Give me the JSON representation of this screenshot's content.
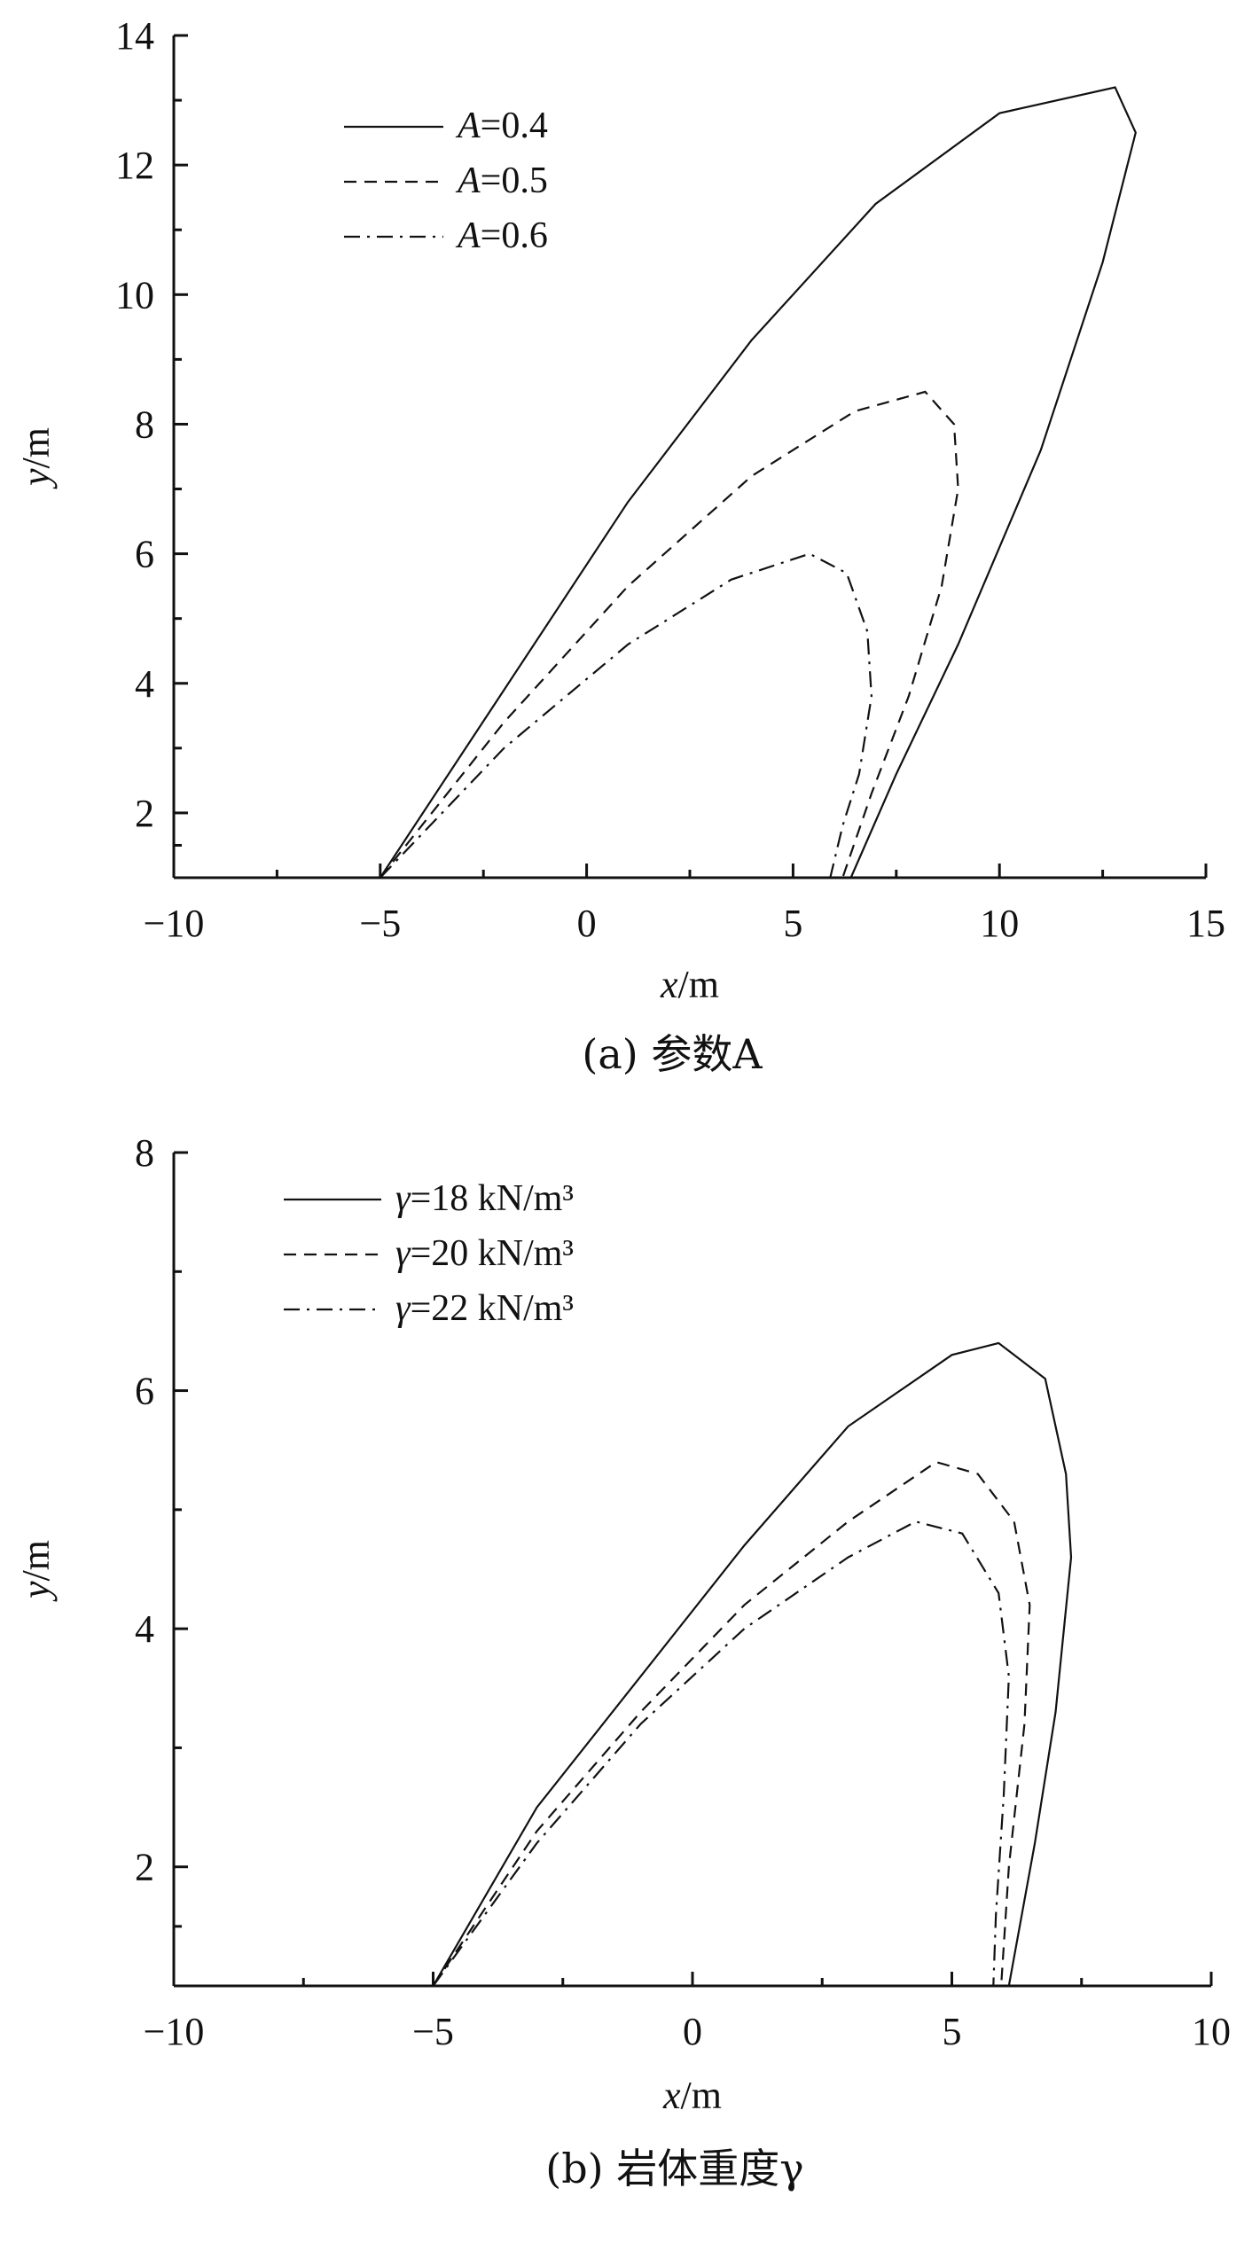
{
  "chart_data": [
    {
      "type": "line",
      "panel": "a",
      "caption": "(a) 参数A",
      "xlabel": "x/m",
      "ylabel": "y/m",
      "xlim": [
        -10,
        15
      ],
      "ylim": [
        1,
        14
      ],
      "xticks": [
        -10,
        -5,
        0,
        5,
        10,
        15
      ],
      "xtick_labels": [
        "−10",
        "−5",
        "0",
        "5",
        "10",
        "15"
      ],
      "yticks": [
        2,
        4,
        6,
        8,
        10,
        12,
        14
      ],
      "ytick_labels": [
        "2",
        "4",
        "6",
        "8",
        "10",
        "12",
        "14"
      ],
      "legend_position": "top-left",
      "series": [
        {
          "name": "A=0.4",
          "style": "solid",
          "points": [
            [
              -5,
              1
            ],
            [
              -2,
              3.9
            ],
            [
              1,
              6.8
            ],
            [
              4,
              9.3
            ],
            [
              7,
              11.4
            ],
            [
              10,
              12.8
            ],
            [
              12.8,
              13.2
            ],
            [
              13.3,
              12.5
            ],
            [
              12.5,
              10.5
            ],
            [
              11.0,
              7.6
            ],
            [
              9.0,
              4.6
            ],
            [
              7.5,
              2.6
            ],
            [
              6.4,
              1
            ]
          ]
        },
        {
          "name": "A=0.5",
          "style": "dashed",
          "points": [
            [
              -5,
              1
            ],
            [
              -2,
              3.4
            ],
            [
              1,
              5.5
            ],
            [
              4,
              7.2
            ],
            [
              6.5,
              8.2
            ],
            [
              8.2,
              8.5
            ],
            [
              8.9,
              8.0
            ],
            [
              9.0,
              7.0
            ],
            [
              8.6,
              5.5
            ],
            [
              7.8,
              3.8
            ],
            [
              6.9,
              2.3
            ],
            [
              6.2,
              1
            ]
          ]
        },
        {
          "name": "A=0.6",
          "style": "dashdot",
          "points": [
            [
              -5,
              1
            ],
            [
              -2,
              3.0
            ],
            [
              1,
              4.6
            ],
            [
              3.5,
              5.6
            ],
            [
              5.4,
              6.0
            ],
            [
              6.3,
              5.7
            ],
            [
              6.8,
              4.8
            ],
            [
              6.9,
              3.8
            ],
            [
              6.6,
              2.6
            ],
            [
              6.2,
              1.8
            ],
            [
              5.9,
              1
            ]
          ]
        }
      ]
    },
    {
      "type": "line",
      "panel": "b",
      "caption": "(b) 岩体重度γ",
      "xlabel": "x/m",
      "ylabel": "y/m",
      "xlim": [
        -10,
        10
      ],
      "ylim": [
        1,
        8
      ],
      "xticks": [
        -10,
        -5,
        0,
        5,
        10
      ],
      "xtick_labels": [
        "−10",
        "−5",
        "0",
        "5",
        "10"
      ],
      "yticks": [
        2,
        4,
        6,
        8
      ],
      "ytick_labels": [
        "2",
        "4",
        "6",
        "8"
      ],
      "legend_position": "top-left",
      "series": [
        {
          "name": "γ=18 kN/m³",
          "style": "solid",
          "points": [
            [
              -5,
              1
            ],
            [
              -3,
              2.5
            ],
            [
              -1,
              3.6
            ],
            [
              1,
              4.7
            ],
            [
              3,
              5.7
            ],
            [
              5,
              6.3
            ],
            [
              5.9,
              6.4
            ],
            [
              6.8,
              6.1
            ],
            [
              7.2,
              5.3
            ],
            [
              7.3,
              4.6
            ],
            [
              7.0,
              3.3
            ],
            [
              6.6,
              2.2
            ],
            [
              6.1,
              1
            ]
          ]
        },
        {
          "name": "γ=20 kN/m³",
          "style": "dashed",
          "points": [
            [
              -5,
              1
            ],
            [
              -3,
              2.3
            ],
            [
              -1,
              3.3
            ],
            [
              1,
              4.2
            ],
            [
              3,
              4.9
            ],
            [
              4.7,
              5.4
            ],
            [
              5.5,
              5.3
            ],
            [
              6.2,
              4.9
            ],
            [
              6.5,
              4.2
            ],
            [
              6.4,
              3.2
            ],
            [
              6.1,
              2.0
            ],
            [
              5.95,
              1
            ]
          ]
        },
        {
          "name": "γ=22 kN/m³",
          "style": "dashdot",
          "points": [
            [
              -5,
              1
            ],
            [
              -3,
              2.2
            ],
            [
              -1,
              3.2
            ],
            [
              1,
              4.0
            ],
            [
              3,
              4.6
            ],
            [
              4.3,
              4.9
            ],
            [
              5.2,
              4.8
            ],
            [
              5.9,
              4.3
            ],
            [
              6.1,
              3.6
            ],
            [
              6.0,
              2.6
            ],
            [
              5.85,
              1.6
            ],
            [
              5.8,
              1
            ]
          ]
        }
      ]
    }
  ]
}
